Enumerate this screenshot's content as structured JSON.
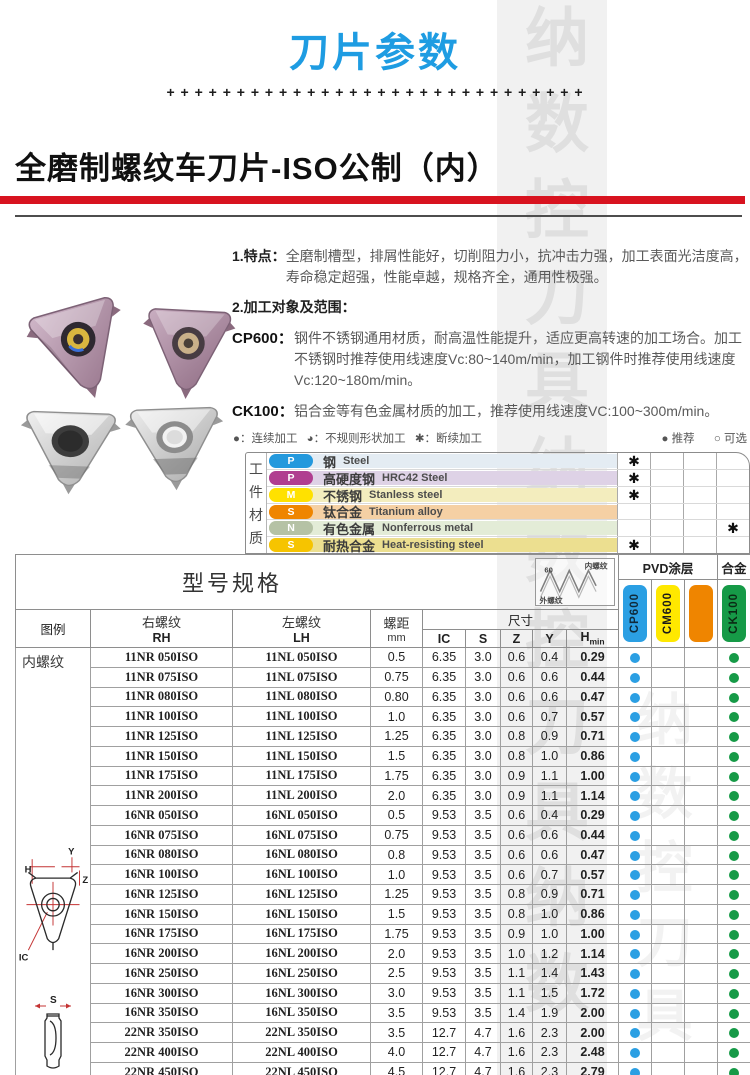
{
  "page": {
    "title": "刀片参数",
    "plus_row": "+ + + + + + + + + + + + + + + + + + + + + + + + + + + + + +",
    "heading": "全磨制螺纹车刀片-ISO公制（内）",
    "watermark": "纳数控刀具",
    "colors": {
      "title_blue": "#1e9ce2",
      "banner_red": "#d8131f"
    }
  },
  "intro": {
    "feature_label": "1.特点：",
    "feature_text": "全磨制槽型，排屑性能好，切削阻力小，抗冲击力强，加工表面光洁度高，寿命稳定超强，性能卓越，规格齐全，通用性极强。",
    "scope_label": "2.加工对象及范围：",
    "items": [
      {
        "code": "CP600：",
        "text": "钢件不锈钢通用材质，耐高温性能提升，适应更高转速的加工场合。加工不锈钢时推荐使用线速度Vc:80~140m/min，加工钢件时推荐使用线速度Vc:120~180m/min。"
      },
      {
        "code": "CK100：",
        "text": "铝合金等有色金属材质的加工，推荐使用线速度VC:100~300m/min。"
      }
    ]
  },
  "legend": {
    "continuous": "●：连续加工",
    "irregular": "◕：不规则形状加工",
    "interrupted": "✱：断续加工",
    "recommended": "● 推荐",
    "optional": "○ 可选"
  },
  "materials": {
    "label_chars": [
      "工",
      "件",
      "材",
      "质"
    ],
    "rows": [
      {
        "code": "P",
        "pill_color": "#2499dd",
        "band_color": "#e4ecf3",
        "name_cn": "钢",
        "name_en": "Steel",
        "marks": [
          "✱",
          "",
          "",
          ""
        ]
      },
      {
        "code": "P",
        "pill_color": "#b03e90",
        "band_color": "#ded2e6",
        "name_cn": "高硬度钢",
        "name_en": "HRC42 Steel",
        "marks": [
          "✱",
          "",
          "",
          ""
        ]
      },
      {
        "code": "M",
        "pill_color": "#ffe100",
        "band_color": "#f3edbe",
        "name_cn": "不锈钢",
        "name_en": "Stanless steel",
        "marks": [
          "✱",
          "",
          "",
          ""
        ]
      },
      {
        "code": "S",
        "pill_color": "#ef8500",
        "band_color": "#f5d0a4",
        "name_cn": "钛合金",
        "name_en": "Titanium alloy",
        "marks": [
          "",
          "",
          "",
          ""
        ]
      },
      {
        "code": "N",
        "pill_color": "#b5c2a5",
        "band_color": "#e3ecd7",
        "name_cn": "有色金属",
        "name_en": "Nonferrous metal",
        "marks": [
          "",
          "",
          "",
          "✱"
        ]
      },
      {
        "code": "S",
        "pill_color": "#f6c400",
        "band_color": "#ecdf90",
        "name_cn": "耐热合金",
        "name_en": "Heat-resisting steel",
        "marks": [
          "✱",
          "",
          "",
          ""
        ]
      }
    ]
  },
  "spec_table": {
    "title": "型号规格",
    "thread_diagram": {
      "angle": "60",
      "internal": "内螺纹",
      "external": "外螺纹"
    },
    "pvd_label": "PVD涂层",
    "alloy_label": "合金",
    "pills": [
      {
        "label": "CP600",
        "color": "#2b9fe3",
        "text_color": "#102a3a"
      },
      {
        "label": "CM600",
        "color": "#ffe800",
        "text_color": "#1a1a1a"
      },
      {
        "label": "",
        "color": "#ef8500",
        "text_color": "#1a1a1a"
      },
      {
        "label": "CK100",
        "color": "#169a47",
        "text_color": "#0b2a14"
      }
    ],
    "headers": {
      "figure": "图例",
      "rh_cn": "右螺纹",
      "rh": "RH",
      "lh_cn": "左螺纹",
      "lh": "LH",
      "pitch_cn": "螺距",
      "pitch_unit": "mm",
      "size": "尺寸",
      "ic": "IC",
      "s": "S",
      "z": "Z",
      "y": "Y",
      "hmin_base": "H",
      "hmin_sub": "min"
    },
    "group_label": "内螺纹",
    "dot_colors": {
      "cp600": "#2b9fe3",
      "ck100": "#169a47"
    },
    "dot_marks": [
      true,
      false,
      false,
      true
    ],
    "rows": [
      {
        "rh": "11NR 050ISO",
        "lh": "11NL 050ISO",
        "pitch": "0.5",
        "ic": "6.35",
        "s": "3.0",
        "z": "0.6",
        "y": "0.4",
        "hmin": "0.29"
      },
      {
        "rh": "11NR 075ISO",
        "lh": "11NL 075ISO",
        "pitch": "0.75",
        "ic": "6.35",
        "s": "3.0",
        "z": "0.6",
        "y": "0.6",
        "hmin": "0.44"
      },
      {
        "rh": "11NR 080ISO",
        "lh": "11NL 080ISO",
        "pitch": "0.80",
        "ic": "6.35",
        "s": "3.0",
        "z": "0.6",
        "y": "0.6",
        "hmin": "0.47"
      },
      {
        "rh": "11NR 100ISO",
        "lh": "11NL 100ISO",
        "pitch": "1.0",
        "ic": "6.35",
        "s": "3.0",
        "z": "0.6",
        "y": "0.7",
        "hmin": "0.57"
      },
      {
        "rh": "11NR 125ISO",
        "lh": "11NL 125ISO",
        "pitch": "1.25",
        "ic": "6.35",
        "s": "3.0",
        "z": "0.8",
        "y": "0.9",
        "hmin": "0.71"
      },
      {
        "rh": "11NR 150ISO",
        "lh": "11NL 150ISO",
        "pitch": "1.5",
        "ic": "6.35",
        "s": "3.0",
        "z": "0.8",
        "y": "1.0",
        "hmin": "0.86"
      },
      {
        "rh": "11NR 175ISO",
        "lh": "11NL 175ISO",
        "pitch": "1.75",
        "ic": "6.35",
        "s": "3.0",
        "z": "0.9",
        "y": "1.1",
        "hmin": "1.00"
      },
      {
        "rh": "11NR 200ISO",
        "lh": "11NL 200ISO",
        "pitch": "2.0",
        "ic": "6.35",
        "s": "3.0",
        "z": "0.9",
        "y": "1.1",
        "hmin": "1.14"
      },
      {
        "rh": "16NR 050ISO",
        "lh": "16NL 050ISO",
        "pitch": "0.5",
        "ic": "9.53",
        "s": "3.5",
        "z": "0.6",
        "y": "0.4",
        "hmin": "0.29"
      },
      {
        "rh": "16NR 075ISO",
        "lh": "16NL 075ISO",
        "pitch": "0.75",
        "ic": "9.53",
        "s": "3.5",
        "z": "0.6",
        "y": "0.6",
        "hmin": "0.44"
      },
      {
        "rh": "16NR 080ISO",
        "lh": "16NL 080ISO",
        "pitch": "0.8",
        "ic": "9.53",
        "s": "3.5",
        "z": "0.6",
        "y": "0.6",
        "hmin": "0.47"
      },
      {
        "rh": "16NR 100ISO",
        "lh": "16NL 100ISO",
        "pitch": "1.0",
        "ic": "9.53",
        "s": "3.5",
        "z": "0.6",
        "y": "0.7",
        "hmin": "0.57"
      },
      {
        "rh": "16NR 125ISO",
        "lh": "16NL 125ISO",
        "pitch": "1.25",
        "ic": "9.53",
        "s": "3.5",
        "z": "0.8",
        "y": "0.9",
        "hmin": "0.71"
      },
      {
        "rh": "16NR 150ISO",
        "lh": "16NL 150ISO",
        "pitch": "1.5",
        "ic": "9.53",
        "s": "3.5",
        "z": "0.8",
        "y": "1.0",
        "hmin": "0.86"
      },
      {
        "rh": "16NR 175ISO",
        "lh": "16NL 175ISO",
        "pitch": "1.75",
        "ic": "9.53",
        "s": "3.5",
        "z": "0.9",
        "y": "1.0",
        "hmin": "1.00"
      },
      {
        "rh": "16NR 200ISO",
        "lh": "16NL 200ISO",
        "pitch": "2.0",
        "ic": "9.53",
        "s": "3.5",
        "z": "1.0",
        "y": "1.2",
        "hmin": "1.14"
      },
      {
        "rh": "16NR 250ISO",
        "lh": "16NL 250ISO",
        "pitch": "2.5",
        "ic": "9.53",
        "s": "3.5",
        "z": "1.1",
        "y": "1.4",
        "hmin": "1.43"
      },
      {
        "rh": "16NR 300ISO",
        "lh": "16NL 300ISO",
        "pitch": "3.0",
        "ic": "9.53",
        "s": "3.5",
        "z": "1.1",
        "y": "1.5",
        "hmin": "1.72"
      },
      {
        "rh": "16NR 350ISO",
        "lh": "16NL 350ISO",
        "pitch": "3.5",
        "ic": "9.53",
        "s": "3.5",
        "z": "1.4",
        "y": "1.9",
        "hmin": "2.00"
      },
      {
        "rh": "22NR 350ISO",
        "lh": "22NL 350ISO",
        "pitch": "3.5",
        "ic": "12.7",
        "s": "4.7",
        "z": "1.6",
        "y": "2.3",
        "hmin": "2.00"
      },
      {
        "rh": "22NR 400ISO",
        "lh": "22NL 400ISO",
        "pitch": "4.0",
        "ic": "12.7",
        "s": "4.7",
        "z": "1.6",
        "y": "2.3",
        "hmin": "2.48"
      },
      {
        "rh": "22NR 450ISO",
        "lh": "22NL 450ISO",
        "pitch": "4.5",
        "ic": "12.7",
        "s": "4.7",
        "z": "1.6",
        "y": "2.3",
        "hmin": "2.79"
      }
    ]
  },
  "diagram_labels": {
    "h": "H",
    "y": "Y",
    "z": "Z",
    "ic": "IC",
    "s": "S"
  }
}
